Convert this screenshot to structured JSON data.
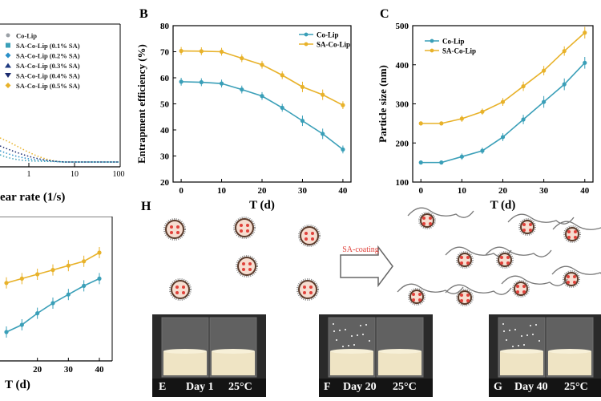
{
  "colors": {
    "co_lip": "#3a9fb8",
    "sa_co_lip": "#e8b22a",
    "accent_red": "#e0413a"
  },
  "panel_a": {
    "xlabel": "ear rate (1/s)",
    "ticks": [
      "1",
      "10",
      "100"
    ],
    "legend": [
      {
        "label": "Co-Lip",
        "color": "#9aa0a6",
        "marker": "circle-small"
      },
      {
        "label": "SA-Co-Lip (0.1% SA)",
        "color": "#3a9fb8",
        "marker": "square"
      },
      {
        "label": "SA-Co-Lip (0.2% SA)",
        "color": "#2a8fc8",
        "marker": "diamond"
      },
      {
        "label": "SA-Co-Lip (0.3% SA)",
        "color": "#1f3a80",
        "marker": "triangle-up"
      },
      {
        "label": "SA-Co-Lip (0.4% SA)",
        "color": "#1a2a6e",
        "marker": "triangle-down"
      },
      {
        "label": "SA-Co-Lip (0.5% SA)",
        "color": "#e8b22a",
        "marker": "diamond"
      }
    ]
  },
  "panel_b": {
    "letter": "B",
    "ylabel": "Entrapment efficiency (%)",
    "xlabel": "T (d)",
    "legend": [
      "Co-Lip",
      "SA-Co-Lip"
    ]
  },
  "panel_c": {
    "letter": "C",
    "ylabel": "Particle size (nm)",
    "xlabel": "T (d)",
    "legend": [
      "Co-Lip",
      "SA-Co-Lip"
    ]
  },
  "panel_d": {
    "xlabel": "T (d)",
    "ticks": [
      "20",
      "30",
      "40"
    ]
  },
  "panel_h": {
    "letter": "H",
    "arrow_label": "SA-coating"
  },
  "photos": [
    {
      "letter": "E",
      "caption": "Day 1",
      "temp": "25°C"
    },
    {
      "letter": "F",
      "caption": "Day 20",
      "temp": "25°C"
    },
    {
      "letter": "G",
      "caption": "Day 40",
      "temp": "25°C"
    }
  ],
  "chart_data": [
    {
      "panel": "B",
      "type": "line",
      "xlabel": "T (d)",
      "ylabel": "Entrapment efficiency (%)",
      "xlim": [
        -2,
        42
      ],
      "ylim": [
        20,
        80
      ],
      "xticks": [
        0,
        10,
        20,
        30,
        40
      ],
      "yticks": [
        20,
        30,
        40,
        50,
        60,
        70,
        80
      ],
      "legend_position": "top-right",
      "x": [
        0,
        5,
        10,
        15,
        20,
        25,
        30,
        35,
        40
      ],
      "series": [
        {
          "name": "Co-Lip",
          "color": "#3a9fb8",
          "values": [
            58.5,
            58.3,
            57.8,
            55.5,
            53,
            48.5,
            43.5,
            38.5,
            32.5
          ],
          "errors": [
            1.5,
            1.5,
            1.5,
            1.5,
            1.5,
            1.5,
            2,
            2,
            1.5
          ]
        },
        {
          "name": "SA-Co-Lip",
          "color": "#e8b22a",
          "values": [
            70.3,
            70.2,
            70,
            67.5,
            65,
            61,
            56.5,
            53.5,
            49.5
          ],
          "errors": [
            1.5,
            1.5,
            1.5,
            1.5,
            1.5,
            1.5,
            2,
            2,
            1.5
          ]
        }
      ]
    },
    {
      "panel": "C",
      "type": "line",
      "xlabel": "T (d)",
      "ylabel": "Particle size (nm)",
      "xlim": [
        -2,
        42
      ],
      "ylim": [
        100,
        500
      ],
      "xticks": [
        0,
        10,
        20,
        30,
        40
      ],
      "yticks": [
        100,
        200,
        300,
        400,
        500
      ],
      "legend_position": "top-left",
      "x": [
        0,
        5,
        10,
        15,
        20,
        25,
        30,
        35,
        40
      ],
      "series": [
        {
          "name": "Co-Lip",
          "color": "#3a9fb8",
          "values": [
            150,
            150,
            165,
            180,
            215,
            260,
            305,
            350,
            405
          ],
          "errors": [
            5,
            5,
            8,
            8,
            10,
            12,
            15,
            15,
            15
          ]
        },
        {
          "name": "SA-Co-Lip",
          "color": "#e8b22a",
          "values": [
            250,
            250,
            262,
            280,
            305,
            345,
            385,
            435,
            482
          ],
          "errors": [
            5,
            5,
            8,
            8,
            10,
            12,
            12,
            12,
            15
          ]
        }
      ]
    },
    {
      "panel": "D",
      "type": "line",
      "xlabel": "T (d)",
      "x": [
        10,
        15,
        20,
        25,
        30,
        35,
        40
      ],
      "series": [
        {
          "color": "#e8b22a",
          "values": [
            0.54,
            0.57,
            0.6,
            0.63,
            0.66,
            0.69,
            0.75
          ]
        },
        {
          "color": "#3a9fb8",
          "values": [
            0.2,
            0.25,
            0.33,
            0.4,
            0.46,
            0.52,
            0.57
          ]
        }
      ]
    }
  ]
}
